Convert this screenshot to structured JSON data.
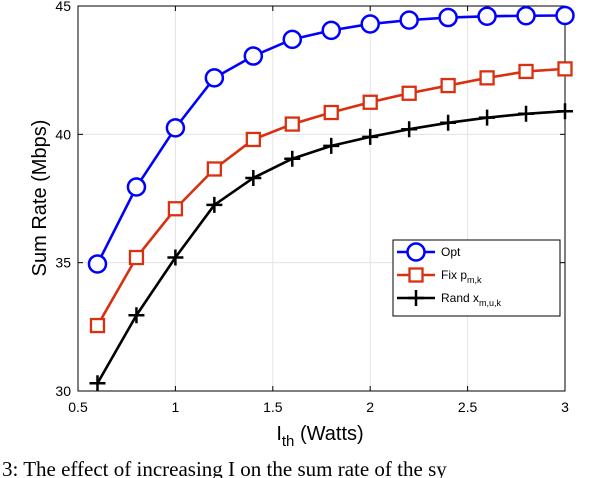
{
  "chart_data": {
    "type": "line",
    "title": "",
    "xlabel": {
      "main": "I",
      "sub": "th",
      "rest": " (Watts)"
    },
    "ylabel": "Sum Rate (Mbps)",
    "xlim": [
      0.5,
      3
    ],
    "ylim": [
      30,
      45
    ],
    "xticks": [
      0.5,
      1,
      1.5,
      2,
      2.5,
      3
    ],
    "xtick_labels": [
      "0.5",
      "1",
      "1.5",
      "2",
      "2.5",
      "3"
    ],
    "yticks": [
      30,
      35,
      40,
      45
    ],
    "ytick_labels": [
      "30",
      "35",
      "40",
      "45"
    ],
    "grid": true,
    "legend_position": "right",
    "x": [
      0.6,
      0.8,
      1.0,
      1.2,
      1.4,
      1.6,
      1.8,
      2.0,
      2.2,
      2.4,
      2.6,
      2.8,
      3.0
    ],
    "series": [
      {
        "name": "Opt",
        "name_main": "Opt",
        "name_sub": "",
        "color": "#0000ff",
        "marker": "circle",
        "values": [
          34.95,
          37.95,
          40.25,
          42.2,
          43.05,
          43.7,
          44.05,
          44.3,
          44.45,
          44.55,
          44.6,
          44.62,
          44.63
        ]
      },
      {
        "name": "Fix p m,k",
        "name_main": "Fix p",
        "name_sub": "m,k",
        "color": "#d93010",
        "marker": "square",
        "values": [
          32.55,
          35.2,
          37.1,
          38.65,
          39.8,
          40.4,
          40.85,
          41.25,
          41.6,
          41.9,
          42.2,
          42.45,
          42.55
        ]
      },
      {
        "name": "Rand x m,u,k",
        "name_main": "Rand x",
        "name_sub": "m,u,k",
        "color": "#000000",
        "marker": "plus",
        "values": [
          30.3,
          32.95,
          35.2,
          37.25,
          38.3,
          39.05,
          39.55,
          39.9,
          40.2,
          40.45,
          40.65,
          40.8,
          40.9
        ]
      }
    ]
  },
  "caption": "3: The effect of increasing I   on the sum rate of the sy"
}
